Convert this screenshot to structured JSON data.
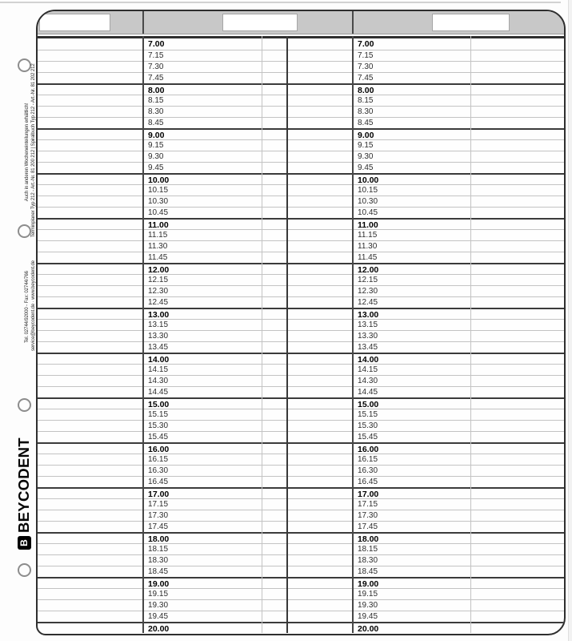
{
  "page": {
    "brand": "BEYCODENT",
    "brand_glyph": "B",
    "tabs": {
      "window_labels": [
        "",
        "",
        ""
      ]
    },
    "margin_notes": {
      "availability": "Auch in anderen Wocheneinteilungen erhältlich!",
      "article": "Terminplaner Typ 212 - Art.-Nr. 81 200 212 | Spiralbuch Typ 212 - Art.-Nr. 81 202 212",
      "contact_phone": "Tel. 02744/92000 - Fax: 02744/766",
      "contact_web": "service@beycodent.de · www.beycodent.de"
    }
  },
  "schedule": {
    "columns_per_page": 2,
    "start_time": "7.00",
    "end_time": "20.00",
    "interval_minutes": 15,
    "times": [
      "7.00",
      "7.15",
      "7.30",
      "7.45",
      "8.00",
      "8.15",
      "8.30",
      "8.45",
      "9.00",
      "9.15",
      "9.30",
      "9.45",
      "10.00",
      "10.15",
      "10.30",
      "10.45",
      "11.00",
      "11.15",
      "11.30",
      "11.45",
      "12.00",
      "12.15",
      "12.30",
      "12.45",
      "13.00",
      "13.15",
      "13.30",
      "13.45",
      "14.00",
      "14.15",
      "14.30",
      "14.45",
      "15.00",
      "15.15",
      "15.30",
      "15.45",
      "16.00",
      "16.15",
      "16.30",
      "16.45",
      "17.00",
      "17.15",
      "17.30",
      "17.45",
      "18.00",
      "18.15",
      "18.30",
      "18.45",
      "19.00",
      "19.15",
      "19.30",
      "19.45",
      "20.00"
    ]
  },
  "colors": {
    "tab_band": "#c8c8c8",
    "grid_thick": "#3b3b3b",
    "grid_thin": "#c3c3c3",
    "frame_outline": "#2e2e2e",
    "paper": "#fdfdfd"
  }
}
